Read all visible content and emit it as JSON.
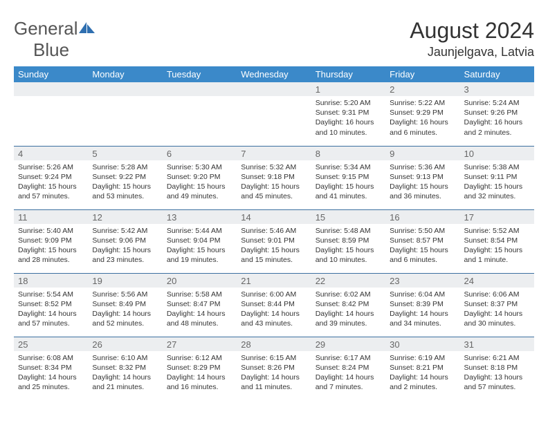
{
  "brand": {
    "name_a": "General",
    "name_b": "Blue"
  },
  "title": "August 2024",
  "location": "Jaunjelgava, Latvia",
  "header_color": "#3b89c9",
  "border_color": "#3b6fa0",
  "daynum_bg": "#eceef0",
  "days_of_week": [
    "Sunday",
    "Monday",
    "Tuesday",
    "Wednesday",
    "Thursday",
    "Friday",
    "Saturday"
  ],
  "labels": {
    "sunrise": "Sunrise:",
    "sunset": "Sunset:",
    "daylight": "Daylight:"
  },
  "weeks": [
    [
      null,
      null,
      null,
      null,
      {
        "n": "1",
        "rise": "5:20 AM",
        "set": "9:31 PM",
        "dl": "16 hours and 10 minutes."
      },
      {
        "n": "2",
        "rise": "5:22 AM",
        "set": "9:29 PM",
        "dl": "16 hours and 6 minutes."
      },
      {
        "n": "3",
        "rise": "5:24 AM",
        "set": "9:26 PM",
        "dl": "16 hours and 2 minutes."
      }
    ],
    [
      {
        "n": "4",
        "rise": "5:26 AM",
        "set": "9:24 PM",
        "dl": "15 hours and 57 minutes."
      },
      {
        "n": "5",
        "rise": "5:28 AM",
        "set": "9:22 PM",
        "dl": "15 hours and 53 minutes."
      },
      {
        "n": "6",
        "rise": "5:30 AM",
        "set": "9:20 PM",
        "dl": "15 hours and 49 minutes."
      },
      {
        "n": "7",
        "rise": "5:32 AM",
        "set": "9:18 PM",
        "dl": "15 hours and 45 minutes."
      },
      {
        "n": "8",
        "rise": "5:34 AM",
        "set": "9:15 PM",
        "dl": "15 hours and 41 minutes."
      },
      {
        "n": "9",
        "rise": "5:36 AM",
        "set": "9:13 PM",
        "dl": "15 hours and 36 minutes."
      },
      {
        "n": "10",
        "rise": "5:38 AM",
        "set": "9:11 PM",
        "dl": "15 hours and 32 minutes."
      }
    ],
    [
      {
        "n": "11",
        "rise": "5:40 AM",
        "set": "9:09 PM",
        "dl": "15 hours and 28 minutes."
      },
      {
        "n": "12",
        "rise": "5:42 AM",
        "set": "9:06 PM",
        "dl": "15 hours and 23 minutes."
      },
      {
        "n": "13",
        "rise": "5:44 AM",
        "set": "9:04 PM",
        "dl": "15 hours and 19 minutes."
      },
      {
        "n": "14",
        "rise": "5:46 AM",
        "set": "9:01 PM",
        "dl": "15 hours and 15 minutes."
      },
      {
        "n": "15",
        "rise": "5:48 AM",
        "set": "8:59 PM",
        "dl": "15 hours and 10 minutes."
      },
      {
        "n": "16",
        "rise": "5:50 AM",
        "set": "8:57 PM",
        "dl": "15 hours and 6 minutes."
      },
      {
        "n": "17",
        "rise": "5:52 AM",
        "set": "8:54 PM",
        "dl": "15 hours and 1 minute."
      }
    ],
    [
      {
        "n": "18",
        "rise": "5:54 AM",
        "set": "8:52 PM",
        "dl": "14 hours and 57 minutes."
      },
      {
        "n": "19",
        "rise": "5:56 AM",
        "set": "8:49 PM",
        "dl": "14 hours and 52 minutes."
      },
      {
        "n": "20",
        "rise": "5:58 AM",
        "set": "8:47 PM",
        "dl": "14 hours and 48 minutes."
      },
      {
        "n": "21",
        "rise": "6:00 AM",
        "set": "8:44 PM",
        "dl": "14 hours and 43 minutes."
      },
      {
        "n": "22",
        "rise": "6:02 AM",
        "set": "8:42 PM",
        "dl": "14 hours and 39 minutes."
      },
      {
        "n": "23",
        "rise": "6:04 AM",
        "set": "8:39 PM",
        "dl": "14 hours and 34 minutes."
      },
      {
        "n": "24",
        "rise": "6:06 AM",
        "set": "8:37 PM",
        "dl": "14 hours and 30 minutes."
      }
    ],
    [
      {
        "n": "25",
        "rise": "6:08 AM",
        "set": "8:34 PM",
        "dl": "14 hours and 25 minutes."
      },
      {
        "n": "26",
        "rise": "6:10 AM",
        "set": "8:32 PM",
        "dl": "14 hours and 21 minutes."
      },
      {
        "n": "27",
        "rise": "6:12 AM",
        "set": "8:29 PM",
        "dl": "14 hours and 16 minutes."
      },
      {
        "n": "28",
        "rise": "6:15 AM",
        "set": "8:26 PM",
        "dl": "14 hours and 11 minutes."
      },
      {
        "n": "29",
        "rise": "6:17 AM",
        "set": "8:24 PM",
        "dl": "14 hours and 7 minutes."
      },
      {
        "n": "30",
        "rise": "6:19 AM",
        "set": "8:21 PM",
        "dl": "14 hours and 2 minutes."
      },
      {
        "n": "31",
        "rise": "6:21 AM",
        "set": "8:18 PM",
        "dl": "13 hours and 57 minutes."
      }
    ]
  ]
}
